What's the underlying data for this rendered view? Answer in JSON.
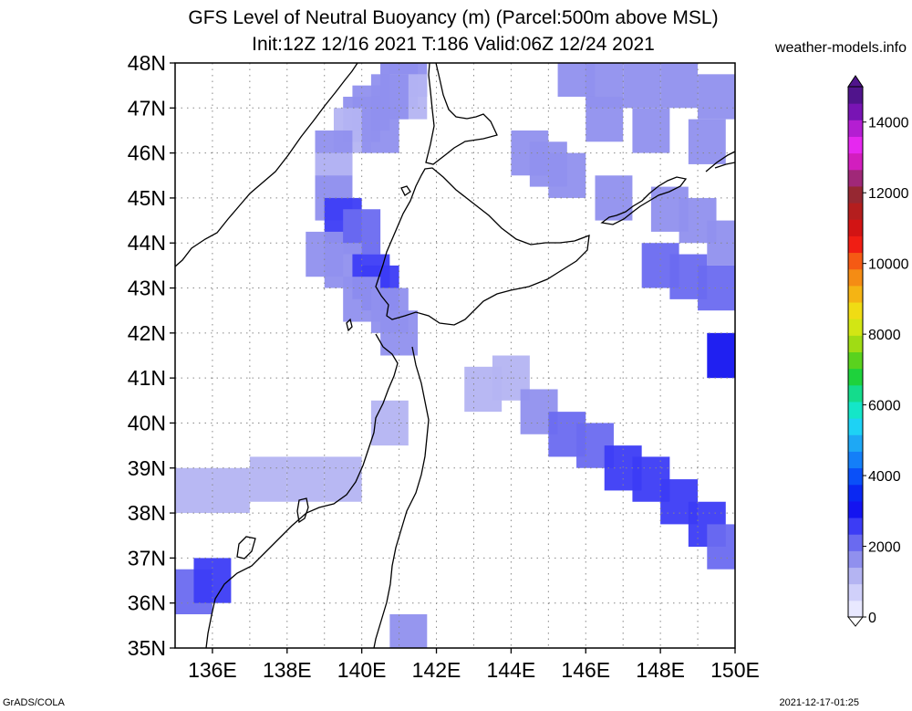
{
  "title": {
    "line1": "GFS Level of Neutral Buoyancy (m) (Parcel:500m above MSL)",
    "line2": "Init:12Z 12/16 2021 T:186 Valid:06Z 12/24 2021"
  },
  "site": "weather-models.info",
  "credit": "GrADS/COLA",
  "timestamp": "2021-12-17-01:25",
  "axes": {
    "lat_labels": [
      "48N",
      "47N",
      "46N",
      "45N",
      "44N",
      "43N",
      "42N",
      "41N",
      "40N",
      "39N",
      "38N",
      "37N",
      "36N",
      "35N"
    ],
    "lon_labels": [
      "136E",
      "138E",
      "140E",
      "142E",
      "144E",
      "146E",
      "148E",
      "150E"
    ],
    "lat_range": [
      35,
      48
    ],
    "lon_range": [
      135,
      150
    ]
  },
  "colorbar": {
    "labels": [
      "0",
      "2000",
      "4000",
      "6000",
      "8000",
      "10000",
      "12000",
      "14000"
    ],
    "colors": [
      "#e8e8ff",
      "#d0d0fa",
      "#b4b4f2",
      "#9090ee",
      "#6a6af0",
      "#3c3cf5",
      "#1414f0",
      "#0a28f2",
      "#0a50f8",
      "#147ff8",
      "#1ea8f5",
      "#1ed2f5",
      "#14e6c8",
      "#14dc8c",
      "#1ed23c",
      "#5ad21e",
      "#a0dc14",
      "#d2e614",
      "#f0dc14",
      "#f5b414",
      "#f58c14",
      "#f55a14",
      "#f01e14",
      "#d21414",
      "#b41e1e",
      "#962832",
      "#a02878",
      "#d21ebe",
      "#e628f0",
      "#b41ed2",
      "#7814b4",
      "#50148c"
    ]
  },
  "chart_data": {
    "type": "heatmap",
    "variable": "Level of Neutral Buoyancy (m)",
    "cells": [
      [
        141.0,
        48.0,
        1700
      ],
      [
        141.25,
        47.75,
        1500
      ],
      [
        141.0,
        47.5,
        1600
      ],
      [
        141.25,
        47.25,
        1400
      ],
      [
        140.75,
        47.25,
        1600
      ],
      [
        140.25,
        47.0,
        1500
      ],
      [
        140.0,
        46.75,
        1700
      ],
      [
        139.75,
        46.5,
        1400
      ],
      [
        140.5,
        46.5,
        1600
      ],
      [
        139.25,
        46.0,
        1500
      ],
      [
        139.25,
        45.5,
        1400
      ],
      [
        139.25,
        45.0,
        1700
      ],
      [
        139.5,
        44.5,
        2600
      ],
      [
        140.0,
        44.25,
        2300
      ],
      [
        139.0,
        43.75,
        1500
      ],
      [
        139.5,
        43.5,
        1700
      ],
      [
        140.25,
        43.25,
        2400
      ],
      [
        140.5,
        43.0,
        2700
      ],
      [
        140.0,
        42.75,
        1600
      ],
      [
        140.75,
        42.5,
        1600
      ],
      [
        145.75,
        47.75,
        1700
      ],
      [
        146.5,
        47.5,
        1800
      ],
      [
        147.5,
        47.5,
        1700
      ],
      [
        148.5,
        47.5,
        1800
      ],
      [
        149.5,
        47.25,
        1700
      ],
      [
        146.5,
        46.75,
        1600
      ],
      [
        147.75,
        46.5,
        1700
      ],
      [
        149.25,
        46.25,
        1600
      ],
      [
        144.5,
        46.0,
        1500
      ],
      [
        145.0,
        45.75,
        1500
      ],
      [
        145.5,
        45.5,
        1500
      ],
      [
        146.75,
        45.0,
        1600
      ],
      [
        148.25,
        44.75,
        1700
      ],
      [
        149.0,
        44.5,
        1800
      ],
      [
        149.75,
        44.0,
        1800
      ],
      [
        148.0,
        43.5,
        2000
      ],
      [
        148.75,
        43.25,
        2200
      ],
      [
        149.5,
        43.0,
        2000
      ],
      [
        149.75,
        41.5,
        3000
      ],
      [
        144.0,
        41.0,
        1400
      ],
      [
        143.25,
        40.75,
        1400
      ],
      [
        144.75,
        40.25,
        1700
      ],
      [
        145.5,
        39.75,
        2100
      ],
      [
        146.25,
        39.5,
        2300
      ],
      [
        147.0,
        39.0,
        2500
      ],
      [
        147.75,
        38.75,
        2700
      ],
      [
        148.5,
        38.25,
        2600
      ],
      [
        149.25,
        37.75,
        2400
      ],
      [
        149.75,
        37.25,
        2200
      ],
      [
        135.5,
        38.5,
        1300
      ],
      [
        136.5,
        38.5,
        1200
      ],
      [
        137.5,
        38.75,
        1400
      ],
      [
        138.5,
        38.75,
        1300
      ],
      [
        139.5,
        38.75,
        1200
      ],
      [
        135.5,
        36.25,
        2200
      ],
      [
        136.0,
        36.5,
        2600
      ],
      [
        141.25,
        35.25,
        1500
      ],
      [
        140.75,
        40.0,
        1400
      ],
      [
        141.0,
        42.0,
        1500
      ]
    ]
  }
}
